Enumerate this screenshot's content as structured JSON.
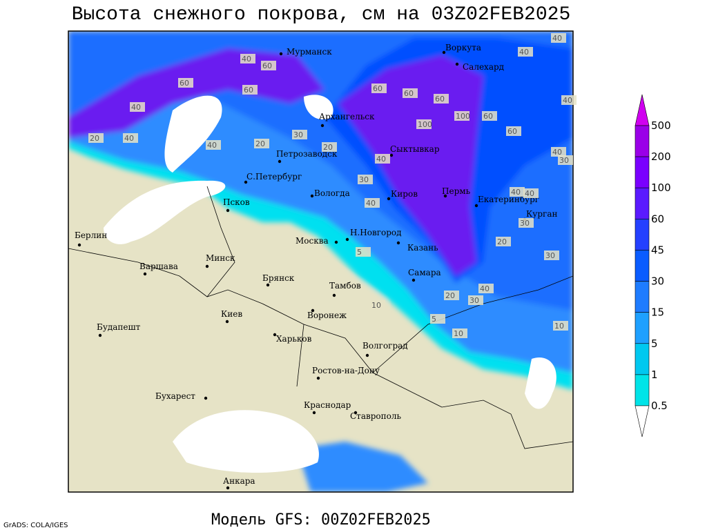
{
  "header": {
    "title": "Высота снежного покрова, см на 03Z02FEB2025"
  },
  "cities": [
    "Мурманск",
    "Воркута",
    "Салехард",
    "Архангельск",
    "Сыктывкар",
    "Петрозаводск",
    "С.Петербург",
    "Вологда",
    "Киров",
    "Пермь",
    "Екатеринбург",
    "Курган",
    "Псков",
    "Н.Новгород",
    "Москва",
    "Казань",
    "Берлин",
    "Варшава",
    "Минск",
    "Брянск",
    "Тамбов",
    "Самара",
    "Киев",
    "Воронеж",
    "Будапешт",
    "Харьков",
    "Волгоград",
    "Ростов-на-Дону",
    "Бухарест",
    "Краснодар",
    "Ставрополь",
    "Анкара"
  ],
  "contour_labels": [
    "40",
    "60",
    "60",
    "60",
    "40",
    "40",
    "20",
    "40",
    "20",
    "20",
    "30",
    "60",
    "100",
    "60",
    "100",
    "60",
    "60",
    "40",
    "40",
    "30",
    "40",
    "40",
    "40",
    "40",
    "30",
    "30",
    "40",
    "20",
    "30",
    "5",
    "10",
    "10",
    "5",
    "10",
    "20",
    "30",
    "40",
    "60",
    "40"
  ],
  "legend": {
    "labels": [
      "500",
      "200",
      "100",
      "60",
      "45",
      "30",
      "15",
      "5",
      "1",
      "0.5"
    ]
  },
  "footer": {
    "credit": "GrADS: COLA/IGES",
    "model": "Модель GFS: 00Z02FEB2025"
  }
}
